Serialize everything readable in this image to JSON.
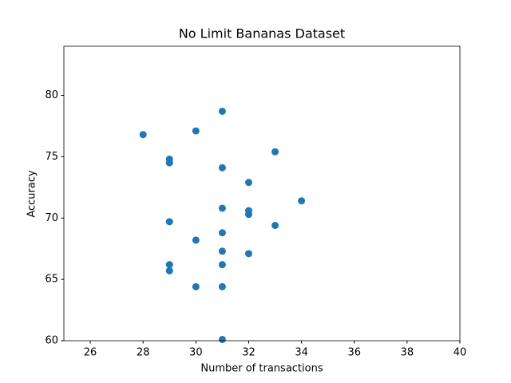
{
  "chart_data": {
    "type": "scatter",
    "title": "No Limit Bananas Dataset",
    "x_label": "Number of transactions",
    "y_label": "Accuracy",
    "x": [
      31,
      28,
      30,
      33,
      29,
      29,
      31,
      32,
      34,
      31,
      32,
      32,
      29,
      33,
      31,
      30,
      31,
      32,
      29,
      31,
      29,
      30,
      31,
      31
    ],
    "values": [
      78.7,
      76.8,
      77.1,
      75.4,
      74.8,
      74.5,
      74.1,
      72.9,
      71.4,
      70.8,
      70.6,
      70.3,
      69.7,
      69.4,
      68.8,
      68.2,
      67.3,
      67.1,
      66.2,
      66.2,
      65.7,
      64.4,
      64.4,
      60.1
    ],
    "color": "#1f77b4",
    "xlim": [
      25,
      40
    ],
    "xticks": [
      26,
      28,
      30,
      32,
      34,
      36,
      38,
      40
    ],
    "ylim": [
      60,
      84
    ],
    "yticks": [
      60,
      65,
      70,
      75,
      80
    ]
  }
}
